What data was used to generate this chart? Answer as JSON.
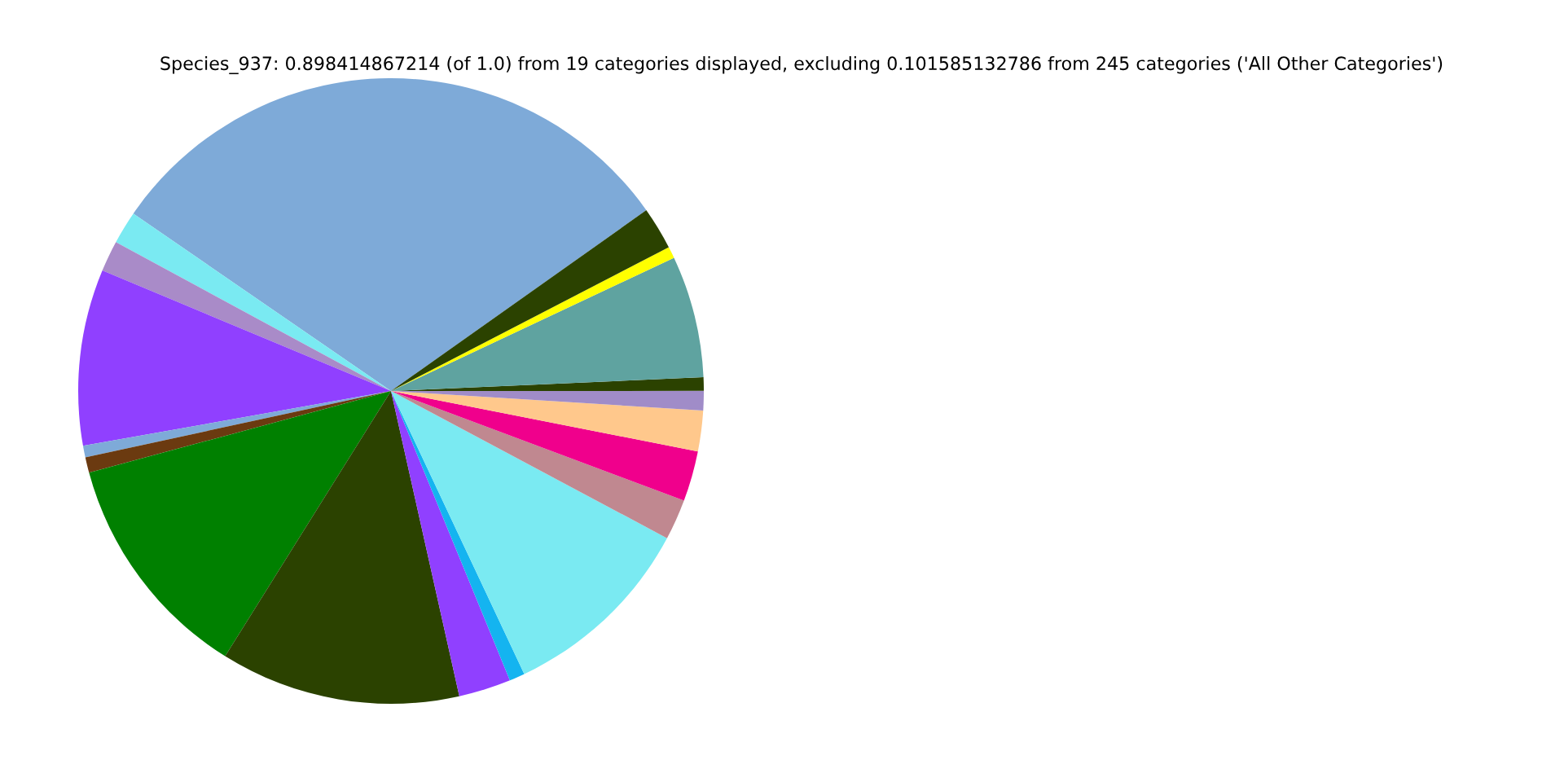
{
  "chart_data": {
    "type": "pie",
    "title": "Species_937: 0.898414867214 (of 1.0) from 19 categories displayed, excluding 0.101585132786 from 245 categories ('All Other Categories')",
    "categories": [
      null,
      null,
      null,
      null,
      null,
      null,
      null,
      null,
      null,
      null,
      null,
      null,
      null,
      null,
      null,
      null,
      null,
      null,
      null
    ],
    "values": [
      30.6,
      1.7,
      1.6,
      9.1,
      0.6,
      0.8,
      11.9,
      12.4,
      2.7,
      0.8,
      10.2,
      2.1,
      2.6,
      2.1,
      1.0,
      0.7,
      6.3,
      0.6,
      2.2
    ],
    "colors": [
      "#7eaad8",
      "#7aeaf2",
      "#a98bc8",
      "#9040ff",
      "#7eaad8",
      "#6b3a10",
      "#008000",
      "#2b4200",
      "#9040ff",
      "#14b4f0",
      "#7aeaf2",
      "#c08890",
      "#f0008c",
      "#ffc88c",
      "#a08cc8",
      "#2b4200",
      "#5fa3a0",
      "#ffff00",
      "#2b4200"
    ]
  }
}
